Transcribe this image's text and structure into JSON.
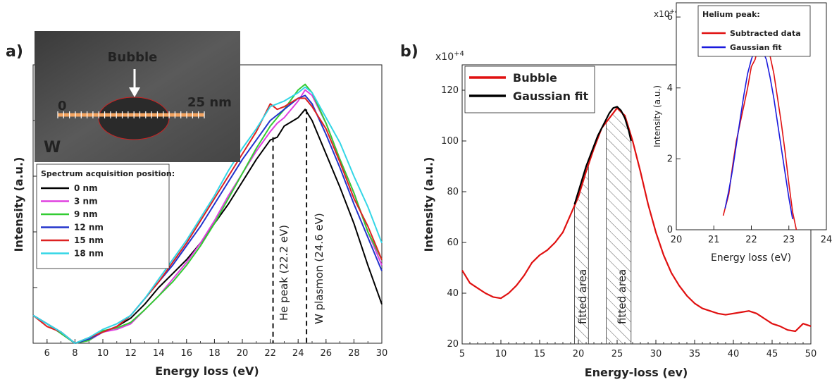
{
  "panel_a": {
    "label": "a)",
    "inset_image": {
      "bubble_label": "Bubble",
      "scale_start": "0",
      "scale_end": "25 nm",
      "element_label": "W"
    },
    "legend_title": "Spectrum acquisition position:",
    "he_peak_label": "He peak (22.2 eV)",
    "plasmon_label": "W plasmon (24.6 eV)"
  },
  "panel_b": {
    "label": "b)",
    "multiplier": "x10",
    "multiplier_exp": "+4",
    "fitted_area_label": "fitted area",
    "inset": {
      "title": "Helium peak:",
      "multiplier": "x10",
      "multiplier_exp": "+4"
    }
  },
  "chart_data": [
    {
      "type": "line",
      "panel": "a",
      "xlabel": "Energy loss (eV)",
      "ylabel": "Intensity (a.u.)",
      "xlim": [
        5,
        30
      ],
      "ylim": [
        0,
        1
      ],
      "xticks": [
        6,
        8,
        10,
        12,
        14,
        16,
        18,
        20,
        22,
        24,
        26,
        28,
        30
      ],
      "annotations": [
        {
          "text": "He peak (22.2 eV)",
          "x": 22.2
        },
        {
          "text": "W plasmon (24.6 eV)",
          "x": 24.6
        }
      ],
      "series": [
        {
          "name": "0 nm",
          "color": "#000000",
          "x": [
            5,
            6,
            7,
            8,
            9,
            10,
            11,
            12,
            13,
            14,
            15,
            16,
            17,
            18,
            19,
            20,
            21,
            22,
            22.5,
            23,
            24,
            24.5,
            25,
            26,
            27,
            28,
            29,
            30
          ],
          "y": [
            0.1,
            0.07,
            0.04,
            0.0,
            0.015,
            0.04,
            0.06,
            0.09,
            0.14,
            0.2,
            0.25,
            0.3,
            0.36,
            0.43,
            0.5,
            0.58,
            0.66,
            0.73,
            0.74,
            0.78,
            0.81,
            0.84,
            0.8,
            0.68,
            0.56,
            0.43,
            0.28,
            0.14
          ]
        },
        {
          "name": "3 nm",
          "color": "#e040e0",
          "x": [
            5,
            6,
            7,
            8,
            9,
            10,
            11,
            12,
            13,
            14,
            15,
            16,
            17,
            18,
            19,
            20,
            21,
            22,
            22.5,
            23,
            24,
            24.5,
            25,
            26,
            27,
            28,
            29,
            30
          ],
          "y": [
            0.1,
            0.07,
            0.035,
            0.0,
            0.01,
            0.04,
            0.05,
            0.07,
            0.12,
            0.17,
            0.23,
            0.29,
            0.36,
            0.44,
            0.53,
            0.61,
            0.69,
            0.76,
            0.79,
            0.81,
            0.87,
            0.91,
            0.89,
            0.79,
            0.66,
            0.54,
            0.4,
            0.28
          ]
        },
        {
          "name": "9 nm",
          "color": "#33cc33",
          "x": [
            5,
            6,
            7,
            8,
            9,
            10,
            11,
            12,
            13,
            14,
            15,
            16,
            17,
            18,
            19,
            20,
            21,
            22,
            22.5,
            23,
            24,
            24.5,
            25,
            26,
            27,
            28,
            29,
            30
          ],
          "y": [
            0.1,
            0.07,
            0.035,
            0.0,
            0.01,
            0.045,
            0.055,
            0.075,
            0.12,
            0.17,
            0.22,
            0.28,
            0.35,
            0.43,
            0.52,
            0.61,
            0.7,
            0.78,
            0.81,
            0.84,
            0.91,
            0.93,
            0.9,
            0.79,
            0.66,
            0.54,
            0.4,
            0.3
          ]
        },
        {
          "name": "12 nm",
          "color": "#2233cc",
          "x": [
            5,
            6,
            7,
            8,
            9,
            10,
            11,
            12,
            13,
            14,
            15,
            16,
            17,
            18,
            19,
            20,
            21,
            22,
            22.5,
            23,
            24,
            24.5,
            25,
            26,
            27,
            28,
            29,
            30
          ],
          "y": [
            0.1,
            0.07,
            0.04,
            0.0,
            0.015,
            0.04,
            0.06,
            0.1,
            0.16,
            0.22,
            0.28,
            0.35,
            0.42,
            0.5,
            0.58,
            0.66,
            0.73,
            0.8,
            0.82,
            0.84,
            0.88,
            0.89,
            0.86,
            0.75,
            0.63,
            0.5,
            0.38,
            0.26
          ]
        },
        {
          "name": "15 nm",
          "color": "#dd2222",
          "x": [
            5,
            6,
            7,
            8,
            9,
            10,
            11,
            12,
            13,
            14,
            15,
            16,
            17,
            18,
            19,
            20,
            21,
            22,
            22.5,
            23,
            24,
            24.5,
            25,
            26,
            27,
            28,
            29,
            30
          ],
          "y": [
            0.1,
            0.06,
            0.04,
            0.0,
            0.02,
            0.04,
            0.06,
            0.1,
            0.16,
            0.22,
            0.29,
            0.36,
            0.44,
            0.52,
            0.6,
            0.68,
            0.76,
            0.86,
            0.84,
            0.85,
            0.88,
            0.88,
            0.85,
            0.77,
            0.65,
            0.52,
            0.42,
            0.3
          ]
        },
        {
          "name": "18 nm",
          "color": "#33d6e6",
          "x": [
            5,
            6,
            7,
            8,
            9,
            10,
            11,
            12,
            13,
            14,
            15,
            16,
            17,
            18,
            19,
            20,
            21,
            22,
            22.5,
            23,
            24,
            24.5,
            25,
            26,
            27,
            28,
            29,
            30
          ],
          "y": [
            0.1,
            0.07,
            0.04,
            0.0,
            0.02,
            0.05,
            0.07,
            0.1,
            0.16,
            0.23,
            0.3,
            0.37,
            0.45,
            0.53,
            0.62,
            0.7,
            0.77,
            0.85,
            0.86,
            0.87,
            0.9,
            0.92,
            0.9,
            0.81,
            0.72,
            0.6,
            0.49,
            0.36
          ]
        }
      ]
    },
    {
      "type": "line",
      "panel": "b",
      "xlabel": "Energy-loss (ev)",
      "ylabel": "Intensity (a.u.)",
      "xlim": [
        5,
        50
      ],
      "ylim": [
        20,
        130
      ],
      "xticks": [
        5,
        10,
        15,
        20,
        25,
        30,
        35,
        40,
        45,
        50
      ],
      "yticks": [
        20,
        40,
        60,
        80,
        100,
        120
      ],
      "fitted_regions": [
        [
          19.5,
          21.3
        ],
        [
          23.6,
          26.8
        ]
      ],
      "series": [
        {
          "name": "Bubble",
          "color": "#e01010",
          "x": [
            5,
            6,
            7,
            8,
            9,
            10,
            11,
            12,
            13,
            14,
            15,
            16,
            17,
            18,
            19,
            20,
            21,
            22,
            23,
            24,
            25,
            26,
            27,
            28,
            29,
            30,
            31,
            32,
            33,
            34,
            35,
            36,
            37,
            38,
            39,
            40,
            41,
            42,
            43,
            44,
            45,
            46,
            47,
            48,
            49,
            50
          ],
          "y": [
            49,
            44,
            42,
            40,
            38.5,
            38,
            40,
            43,
            47,
            52,
            55,
            57,
            60,
            64,
            71,
            78,
            88,
            97,
            105,
            109,
            113,
            110,
            100,
            88,
            75,
            64,
            55,
            48,
            43,
            39,
            36,
            34,
            33,
            32,
            31.5,
            32,
            32.5,
            33,
            32,
            30,
            28,
            27,
            25.5,
            25,
            28,
            27
          ]
        },
        {
          "name": "Gaussian fit",
          "color": "#000000",
          "x": [
            19.5,
            20,
            20.5,
            21,
            21.5,
            22,
            22.5,
            23,
            23.5,
            24,
            24.5,
            25,
            25.5,
            26,
            26.5,
            26.8
          ],
          "y": [
            75,
            80,
            85,
            90,
            94,
            98,
            102,
            105,
            108,
            111,
            113,
            113.5,
            112,
            109,
            104,
            100
          ]
        }
      ]
    },
    {
      "type": "line",
      "panel": "b-inset",
      "title": "Helium peak:",
      "xlabel": "Energy loss (eV)",
      "ylabel": "Intensity (a.u.)",
      "xlim": [
        20,
        24
      ],
      "ylim": [
        0,
        6.4
      ],
      "xticks": [
        20,
        21,
        22,
        23,
        24
      ],
      "yticks": [
        0,
        2,
        4,
        6
      ],
      "series": [
        {
          "name": "Subtracted data",
          "color": "#e01010",
          "x": [
            21.25,
            21.3,
            21.4,
            21.5,
            21.6,
            21.7,
            21.8,
            21.9,
            22.0,
            22.1,
            22.2,
            22.3,
            22.35,
            22.4,
            22.5,
            22.6,
            22.7,
            22.8,
            22.9,
            23.0,
            23.1,
            23.2
          ],
          "y": [
            0.4,
            0.6,
            1.0,
            1.8,
            2.5,
            3.0,
            3.5,
            4.0,
            4.6,
            4.8,
            5.2,
            5.4,
            5.8,
            5.3,
            4.9,
            4.4,
            3.7,
            3.0,
            2.2,
            1.3,
            0.5,
            0.0
          ]
        },
        {
          "name": "Gaussian fit",
          "color": "#1a1add",
          "x": [
            21.3,
            21.4,
            21.5,
            21.6,
            21.7,
            21.8,
            21.9,
            22.0,
            22.1,
            22.2,
            22.3,
            22.4,
            22.5,
            22.6,
            22.7,
            22.8,
            22.9,
            23.0,
            23.1
          ],
          "y": [
            0.6,
            1.1,
            1.7,
            2.4,
            3.1,
            3.8,
            4.4,
            4.8,
            5.1,
            5.15,
            5.05,
            4.8,
            4.3,
            3.7,
            3.0,
            2.3,
            1.6,
            0.9,
            0.3
          ]
        }
      ]
    }
  ]
}
